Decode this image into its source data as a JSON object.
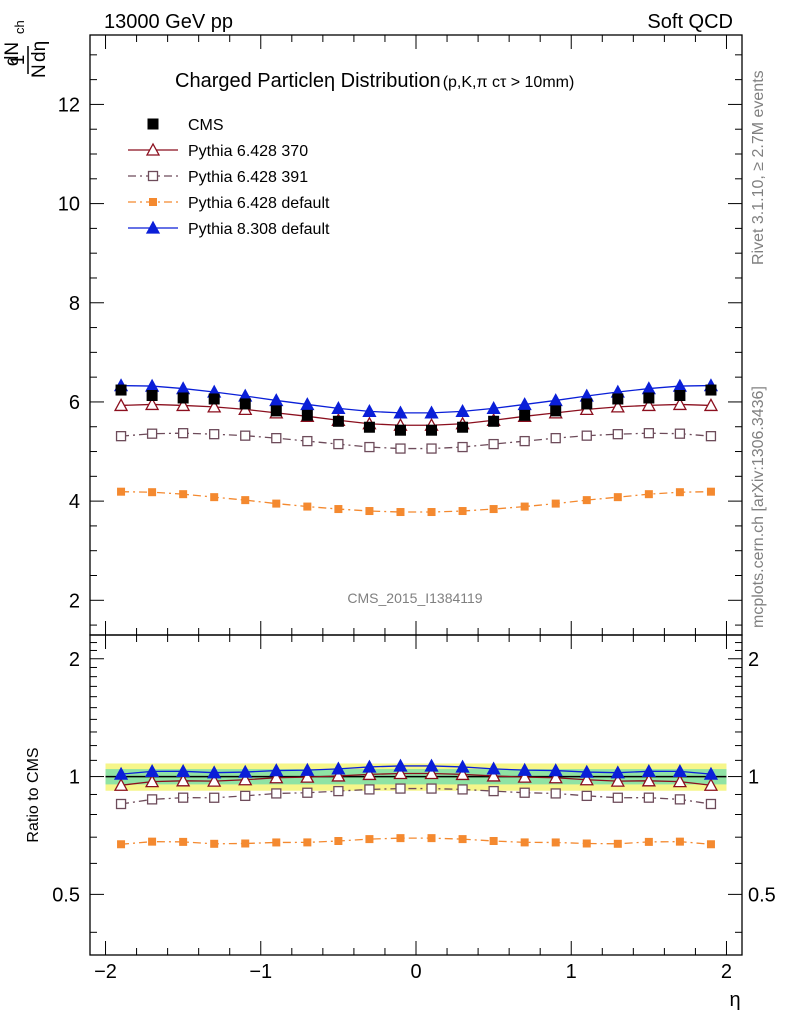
{
  "header": {
    "left": "13000 GeV pp",
    "right": "Soft QCD"
  },
  "side_text": {
    "rivet": "Rivet 3.1.10, ≥ 2.7M events",
    "mcplots": "mcplots.cern.ch [arXiv:1306.3436]"
  },
  "watermark": "CMS_2015_I1384119",
  "chart_data": {
    "type": "line",
    "title_main": "Charged Particleη Distribution",
    "title_sub": "(p,K,π cτ > 10mm)",
    "xlabel": "η",
    "ylabel_main": "1/N dN_ch/dη",
    "ylabel_ratio": "Ratio to CMS",
    "xlim": [
      -2.1,
      2.1
    ],
    "ylim": [
      1.3,
      13.4
    ],
    "ratio_ylim": [
      0.35,
      2.3
    ],
    "ratio_log": true,
    "x_ticks": [
      "−2",
      "−1",
      "0",
      "1",
      "2"
    ],
    "y_ticks": [
      "2",
      "4",
      "6",
      "8",
      "10",
      "12"
    ],
    "ratio_ticks": [
      "0.5",
      "1",
      "2"
    ],
    "x": [
      -1.9,
      -1.7,
      -1.5,
      -1.3,
      -1.1,
      -0.9,
      -0.7,
      -0.5,
      -0.3,
      -0.1,
      0.1,
      0.3,
      0.5,
      0.7,
      0.9,
      1.1,
      1.3,
      1.5,
      1.7,
      1.9
    ],
    "data": {
      "name": "CMS",
      "color": "#000000",
      "values": [
        6.24,
        6.13,
        6.08,
        6.06,
        5.96,
        5.82,
        5.73,
        5.61,
        5.49,
        5.43,
        5.43,
        5.49,
        5.61,
        5.73,
        5.82,
        5.96,
        6.06,
        6.08,
        6.13,
        6.24
      ],
      "band_total": 0.08,
      "band_stat": 0.045
    },
    "series": [
      {
        "name": "Pythia 6.428 370",
        "color": "#8b0f1e",
        "marker": "open-triangle",
        "dash": "solid",
        "values": [
          5.93,
          5.95,
          5.93,
          5.9,
          5.85,
          5.78,
          5.71,
          5.63,
          5.56,
          5.53,
          5.53,
          5.56,
          5.63,
          5.71,
          5.78,
          5.85,
          5.9,
          5.93,
          5.95,
          5.93
        ]
      },
      {
        "name": "Pythia 6.428 391",
        "color": "#6d4b5a",
        "marker": "open-square",
        "dash": "dash-dot",
        "values": [
          5.31,
          5.36,
          5.37,
          5.35,
          5.32,
          5.27,
          5.21,
          5.15,
          5.09,
          5.06,
          5.06,
          5.09,
          5.15,
          5.21,
          5.27,
          5.32,
          5.35,
          5.37,
          5.36,
          5.31
        ]
      },
      {
        "name": "Pythia 6.428 default",
        "color": "#f4892f",
        "marker": "filled-square",
        "dash": "dash-dot",
        "values": [
          4.19,
          4.18,
          4.14,
          4.08,
          4.02,
          3.95,
          3.89,
          3.84,
          3.8,
          3.78,
          3.78,
          3.8,
          3.84,
          3.89,
          3.95,
          4.02,
          4.08,
          4.14,
          4.18,
          4.19
        ]
      },
      {
        "name": "Pythia 8.308 default",
        "color": "#0a1fd8",
        "marker": "filled-triangle",
        "dash": "solid",
        "values": [
          6.33,
          6.32,
          6.27,
          6.2,
          6.12,
          6.03,
          5.95,
          5.87,
          5.81,
          5.78,
          5.78,
          5.81,
          5.87,
          5.95,
          6.03,
          6.12,
          6.2,
          6.27,
          6.32,
          6.33
        ]
      }
    ],
    "grid": false,
    "legend_position": "top-left"
  }
}
